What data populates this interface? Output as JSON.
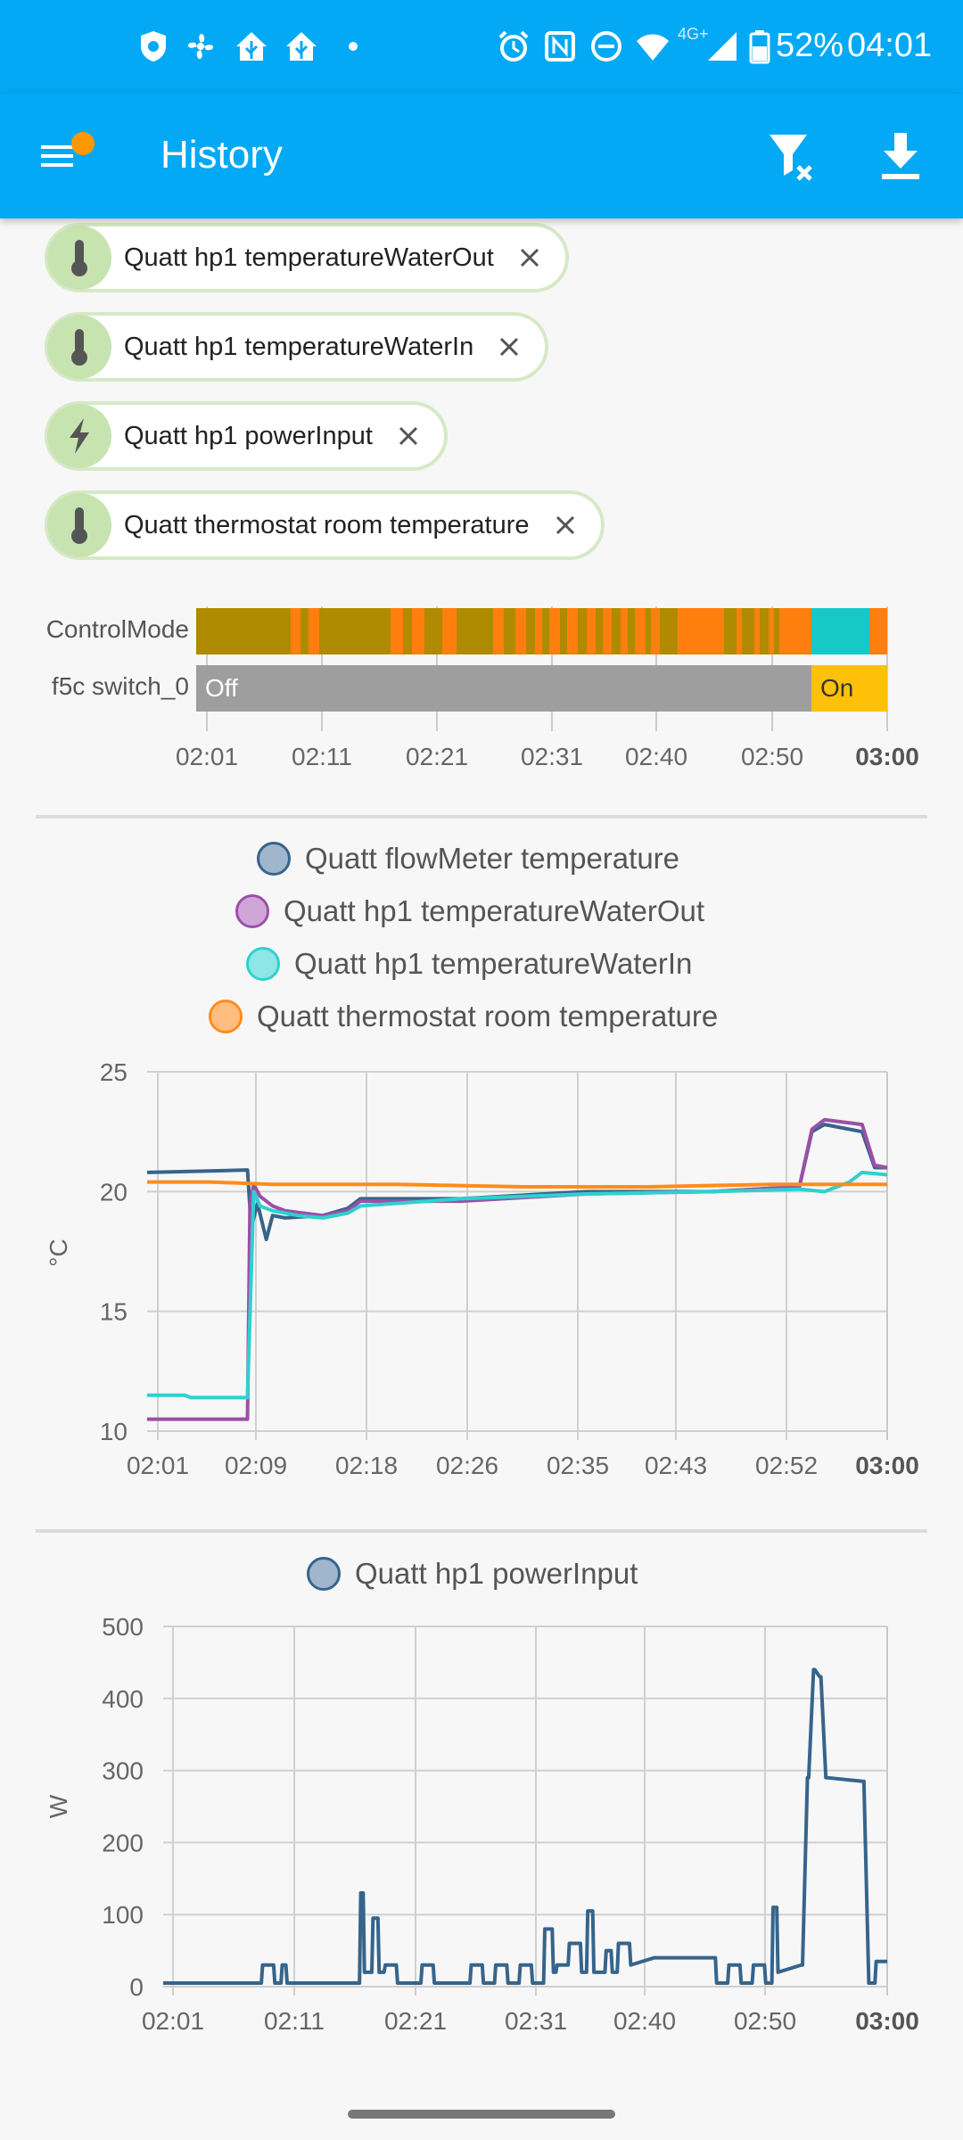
{
  "status_bar": {
    "battery": "52%",
    "time": "04:01",
    "network": "4G+",
    "icons": [
      "shield-icon",
      "fan-icon",
      "home-assistant-icon",
      "home-assistant-icon",
      "dot-icon",
      "alarm-icon",
      "nfc-icon",
      "do-not-disturb-icon",
      "wifi-icon",
      "signal-icon",
      "battery-icon"
    ]
  },
  "app_bar": {
    "title": "History",
    "icons": [
      "menu-icon",
      "filter-clear-icon",
      "download-icon"
    ],
    "badge_color": "#ff9800"
  },
  "chips": [
    {
      "label": "Quatt hp1 temperatureWaterOut",
      "icon": "thermometer-icon"
    },
    {
      "label": "Quatt hp1 temperatureWaterIn",
      "icon": "thermometer-icon"
    },
    {
      "label": "Quatt hp1 powerInput",
      "icon": "flash-icon"
    },
    {
      "label": "Quatt thermostat room temperature",
      "icon": "thermometer-icon"
    }
  ],
  "timeline": {
    "rows": [
      {
        "label": "ControlMode"
      },
      {
        "label": "f5c switch_0",
        "states": [
          "Off",
          "On"
        ]
      }
    ],
    "x_ticks": [
      "02:01",
      "02:11",
      "02:21",
      "02:31",
      "02:40",
      "02:50",
      "03:00"
    ],
    "colors": {
      "mode_a": "#b08a00",
      "mode_b": "#ff7f0e",
      "mode_c": "#17c8c8",
      "off": "#9e9e9e",
      "on": "#ffc107"
    }
  },
  "chart_data": [
    {
      "type": "line",
      "ylabel": "°C",
      "ylim": [
        10,
        25
      ],
      "y_ticks": [
        "25",
        "20",
        "15",
        "10"
      ],
      "x_ticks": [
        "02:01",
        "02:09",
        "02:18",
        "02:26",
        "02:35",
        "02:43",
        "02:52",
        "03:00"
      ],
      "x_range_minutes": [
        0,
        59
      ],
      "grid": true,
      "series": [
        {
          "name": "Quatt flowMeter temperature",
          "color": "#36648b",
          "legend_fill": "#9fb6cc",
          "x": [
            0,
            8,
            8.3,
            8.8,
            9.5,
            10,
            11,
            14,
            16,
            17,
            25,
            35,
            45,
            52,
            53,
            54,
            57,
            58,
            59
          ],
          "y": [
            20.8,
            20.9,
            18.5,
            19.5,
            18.0,
            19.0,
            18.9,
            19.0,
            19.3,
            19.7,
            19.7,
            20.0,
            20.0,
            20.2,
            22.5,
            22.8,
            22.5,
            21.0,
            21.0
          ]
        },
        {
          "name": "Quatt hp1 temperatureWaterOut",
          "color": "#9c4fa8",
          "legend_fill": "#d0a6d8",
          "x": [
            0,
            8,
            8.2,
            8.5,
            9,
            10,
            11,
            14,
            16,
            17,
            25,
            35,
            45,
            52,
            53,
            54,
            57,
            58,
            59
          ],
          "y": [
            10.5,
            10.5,
            19.5,
            20.3,
            19.8,
            19.4,
            19.2,
            19.0,
            19.2,
            19.6,
            19.6,
            19.9,
            20.0,
            20.2,
            22.6,
            23.0,
            22.8,
            21.1,
            21.0
          ]
        },
        {
          "name": "Quatt hp1 temperatureWaterIn",
          "color": "#2fd0d0",
          "legend_fill": "#8fe6e6",
          "x": [
            0,
            3,
            3.5,
            7,
            8,
            8.5,
            9,
            10,
            12,
            14,
            16,
            17,
            25,
            35,
            45,
            52,
            54,
            56,
            57,
            59
          ],
          "y": [
            11.5,
            11.5,
            11.4,
            11.4,
            11.4,
            20.0,
            19.4,
            19.2,
            19.0,
            18.9,
            19.1,
            19.4,
            19.7,
            19.9,
            20.0,
            20.1,
            20.0,
            20.4,
            20.8,
            20.7
          ]
        },
        {
          "name": "Quatt thermostat room temperature",
          "color": "#ff8c1a",
          "legend_fill": "#ffbe80",
          "x": [
            0,
            5,
            10,
            20,
            30,
            40,
            50,
            52,
            55,
            59
          ],
          "y": [
            20.4,
            20.4,
            20.3,
            20.3,
            20.2,
            20.2,
            20.3,
            20.3,
            20.3,
            20.3
          ]
        }
      ]
    },
    {
      "type": "line",
      "ylabel": "W",
      "ylim": [
        0,
        500
      ],
      "y_ticks": [
        "500",
        "400",
        "300",
        "200",
        "100",
        "0"
      ],
      "x_ticks": [
        "02:01",
        "02:11",
        "02:21",
        "02:31",
        "02:40",
        "02:50",
        "03:00"
      ],
      "x_range_minutes": [
        0,
        59
      ],
      "grid": true,
      "series": [
        {
          "name": "Quatt hp1 powerInput",
          "color": "#36648b",
          "legend_fill": "#9fb6cc",
          "x": [
            0,
            8,
            8.1,
            9,
            9.1,
            9.6,
            9.7,
            10,
            10.1,
            11,
            16,
            16.1,
            16.3,
            16.4,
            17,
            17.1,
            17.5,
            17.6,
            18,
            18.1,
            19,
            19.1,
            21,
            21.1,
            22,
            22.1,
            25,
            25.1,
            26,
            26.1,
            27,
            27.1,
            28,
            28.1,
            29,
            29.1,
            30,
            30.1,
            31,
            31.1,
            31.7,
            31.8,
            32,
            32.1,
            33,
            33.1,
            34,
            34.1,
            34.5,
            34.6,
            35,
            35.1,
            36,
            36.1,
            36.5,
            36.6,
            37,
            37.1,
            38,
            38.1,
            40,
            45,
            45.1,
            46,
            46.1,
            47,
            47.1,
            48,
            48.1,
            49,
            49.1,
            49.6,
            49.7,
            50,
            50.1,
            52,
            52.1,
            52.5,
            52.6,
            53,
            53.1,
            53.5,
            53.6,
            54,
            54.1,
            57,
            57.1,
            57.5,
            58,
            58.1,
            59
          ],
          "y": [
            5,
            5,
            30,
            30,
            5,
            5,
            30,
            30,
            5,
            5,
            5,
            130,
            130,
            20,
            20,
            95,
            95,
            20,
            20,
            30,
            30,
            5,
            5,
            30,
            30,
            5,
            5,
            30,
            30,
            5,
            5,
            30,
            30,
            5,
            5,
            30,
            30,
            5,
            5,
            80,
            80,
            20,
            20,
            30,
            30,
            60,
            60,
            20,
            20,
            105,
            105,
            20,
            20,
            50,
            50,
            20,
            20,
            60,
            60,
            30,
            40,
            40,
            5,
            5,
            30,
            30,
            5,
            5,
            30,
            30,
            5,
            5,
            110,
            110,
            20,
            30,
            30,
            290,
            290,
            440,
            440,
            430,
            430,
            290,
            290,
            285,
            285,
            5,
            5,
            35,
            35
          ]
        }
      ]
    }
  ]
}
